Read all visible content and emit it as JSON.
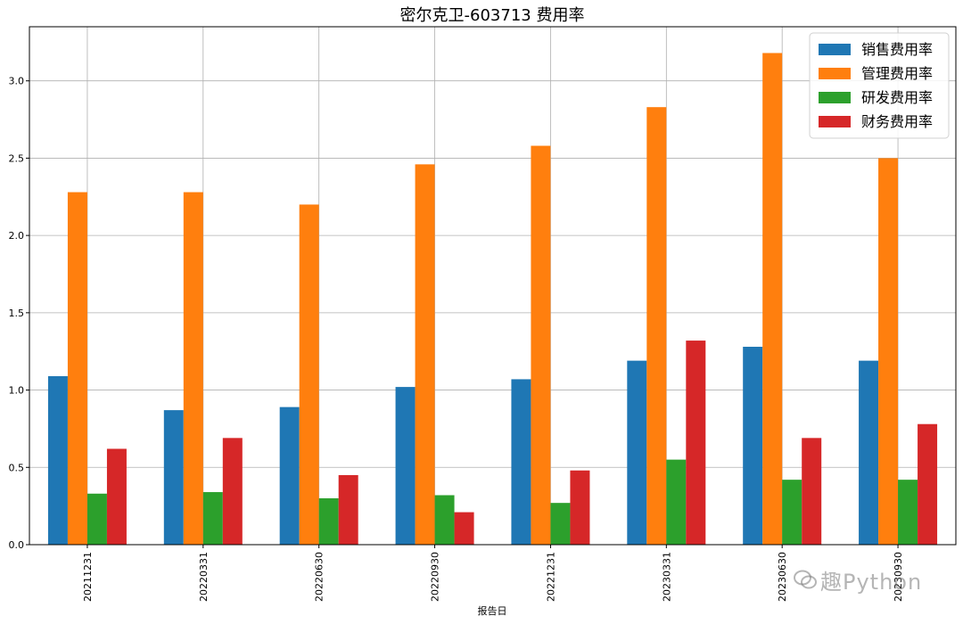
{
  "chart_data": {
    "type": "bar",
    "title": "密尔克卫-603713 费用率",
    "xlabel": "报告日",
    "ylabel": "",
    "ylim": [
      0,
      3.35
    ],
    "yticks": [
      "0.0",
      "0.5",
      "1.0",
      "1.5",
      "2.0",
      "2.5",
      "3.0"
    ],
    "grid": true,
    "legend_position": "top-right",
    "categories": [
      "20211231",
      "20220331",
      "20220630",
      "20220930",
      "20221231",
      "20230331",
      "20230630",
      "20230930"
    ],
    "series": [
      {
        "name": "销售费用率",
        "color": "#1f77b4",
        "values": [
          1.09,
          0.87,
          0.89,
          1.02,
          1.07,
          1.19,
          1.28,
          1.19
        ]
      },
      {
        "name": "管理费用率",
        "color": "#ff7f0e",
        "values": [
          2.28,
          2.28,
          2.2,
          2.46,
          2.58,
          2.83,
          3.18,
          2.5
        ]
      },
      {
        "name": "研发费用率",
        "color": "#2ca02c",
        "values": [
          0.33,
          0.34,
          0.3,
          0.32,
          0.27,
          0.55,
          0.42,
          0.42
        ]
      },
      {
        "name": "财务费用率",
        "color": "#d62728",
        "values": [
          0.62,
          0.69,
          0.45,
          0.21,
          0.48,
          1.32,
          0.69,
          0.78
        ]
      }
    ]
  },
  "watermark": {
    "icon": "wechat-icon",
    "text": "趣Python"
  }
}
